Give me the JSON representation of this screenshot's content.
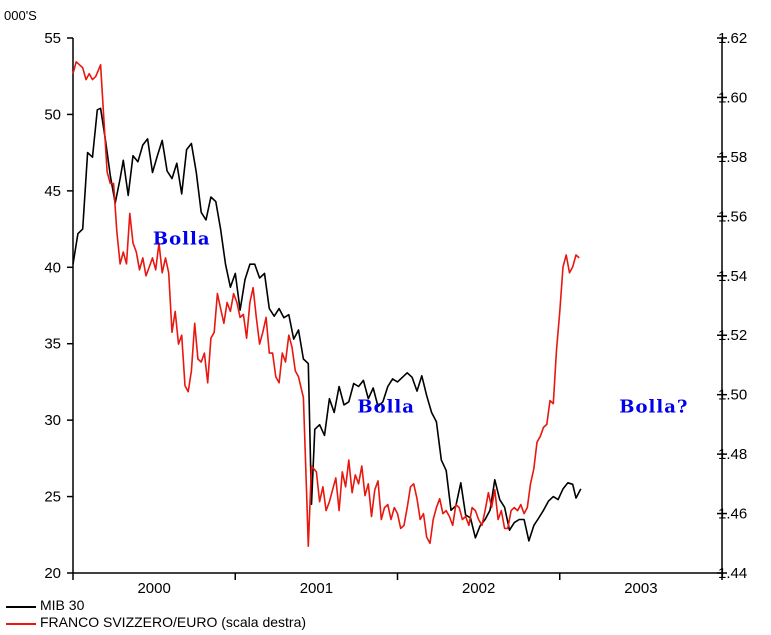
{
  "chart_data": {
    "type": "line",
    "left_unit_label": "000'S",
    "ylim_left": [
      20,
      55
    ],
    "ylim_right": [
      1.44,
      1.62
    ],
    "yticks_left": [
      "20",
      "25",
      "30",
      "35",
      "40",
      "45",
      "50",
      "55"
    ],
    "yticks_right": [
      "1.44",
      "1.46",
      "1.48",
      "1.50",
      "1.52",
      "1.54",
      "1.56",
      "1.58",
      "1.60",
      "1.62"
    ],
    "xlim": [
      2000.0,
      2004.0
    ],
    "xtick_labels": [
      {
        "label": "2000",
        "x": 2000.5
      },
      {
        "label": "2001",
        "x": 2001.5
      },
      {
        "label": "2002",
        "x": 2002.5
      },
      {
        "label": "2003",
        "x": 2003.5
      }
    ],
    "annotations": [
      {
        "text": "Bolla",
        "x": 2000.67,
        "y": 41.5
      },
      {
        "text": "Bolla",
        "x": 2001.93,
        "y": 30.5
      },
      {
        "text": "Bolla?",
        "x": 2003.58,
        "y": 30.5
      }
    ],
    "series": [
      {
        "name": "MIB 30",
        "axis": "left",
        "color": "#000000",
        "points": [
          [
            2000.0,
            40.2
          ],
          [
            2000.03,
            42.2
          ],
          [
            2000.06,
            42.5
          ],
          [
            2000.09,
            47.5
          ],
          [
            2000.12,
            47.2
          ],
          [
            2000.15,
            50.3
          ],
          [
            2000.17,
            50.4
          ],
          [
            2000.2,
            48.3
          ],
          [
            2000.23,
            46.0
          ],
          [
            2000.26,
            44.2
          ],
          [
            2000.29,
            45.8
          ],
          [
            2000.31,
            47.0
          ],
          [
            2000.34,
            44.7
          ],
          [
            2000.37,
            47.3
          ],
          [
            2000.4,
            46.9
          ],
          [
            2000.43,
            48.0
          ],
          [
            2000.46,
            48.4
          ],
          [
            2000.49,
            46.2
          ],
          [
            2000.52,
            47.3
          ],
          [
            2000.55,
            48.3
          ],
          [
            2000.58,
            46.3
          ],
          [
            2000.61,
            45.8
          ],
          [
            2000.64,
            46.8
          ],
          [
            2000.67,
            44.8
          ],
          [
            2000.7,
            47.7
          ],
          [
            2000.73,
            48.1
          ],
          [
            2000.76,
            46.2
          ],
          [
            2000.79,
            43.6
          ],
          [
            2000.82,
            43.1
          ],
          [
            2000.85,
            44.6
          ],
          [
            2000.88,
            44.3
          ],
          [
            2000.91,
            42.5
          ],
          [
            2000.94,
            40.2
          ],
          [
            2000.97,
            38.7
          ],
          [
            2001.0,
            39.6
          ],
          [
            2001.03,
            37.2
          ],
          [
            2001.06,
            39.2
          ],
          [
            2001.09,
            40.2
          ],
          [
            2001.12,
            40.2
          ],
          [
            2001.15,
            39.3
          ],
          [
            2001.18,
            39.6
          ],
          [
            2001.21,
            37.3
          ],
          [
            2001.24,
            36.8
          ],
          [
            2001.27,
            37.3
          ],
          [
            2001.3,
            36.7
          ],
          [
            2001.33,
            36.9
          ],
          [
            2001.36,
            35.3
          ],
          [
            2001.39,
            35.9
          ],
          [
            2001.42,
            34.0
          ],
          [
            2001.45,
            33.7
          ],
          [
            2001.47,
            24.5
          ],
          [
            2001.49,
            29.4
          ],
          [
            2001.52,
            29.7
          ],
          [
            2001.55,
            29.0
          ],
          [
            2001.58,
            31.4
          ],
          [
            2001.61,
            30.5
          ],
          [
            2001.64,
            32.2
          ],
          [
            2001.67,
            31.0
          ],
          [
            2001.7,
            31.2
          ],
          [
            2001.73,
            32.4
          ],
          [
            2001.76,
            32.2
          ],
          [
            2001.79,
            32.6
          ],
          [
            2001.82,
            31.4
          ],
          [
            2001.85,
            32.1
          ],
          [
            2001.88,
            30.9
          ],
          [
            2001.91,
            31.2
          ],
          [
            2001.94,
            32.2
          ],
          [
            2001.97,
            32.7
          ],
          [
            2002.0,
            32.5
          ],
          [
            2002.03,
            32.8
          ],
          [
            2002.06,
            33.1
          ],
          [
            2002.09,
            32.8
          ],
          [
            2002.12,
            31.9
          ],
          [
            2002.15,
            32.9
          ],
          [
            2002.18,
            31.6
          ],
          [
            2002.21,
            30.5
          ],
          [
            2002.24,
            29.9
          ],
          [
            2002.27,
            27.4
          ],
          [
            2002.3,
            26.7
          ],
          [
            2002.33,
            24.1
          ],
          [
            2002.36,
            24.4
          ],
          [
            2002.39,
            25.9
          ],
          [
            2002.42,
            23.8
          ],
          [
            2002.45,
            23.6
          ],
          [
            2002.48,
            22.3
          ],
          [
            2002.51,
            23.1
          ],
          [
            2002.54,
            23.5
          ],
          [
            2002.57,
            24.1
          ],
          [
            2002.6,
            26.1
          ],
          [
            2002.63,
            24.8
          ],
          [
            2002.66,
            24.3
          ],
          [
            2002.69,
            22.8
          ],
          [
            2002.72,
            23.3
          ],
          [
            2002.75,
            23.5
          ],
          [
            2002.78,
            23.5
          ],
          [
            2002.81,
            22.1
          ],
          [
            2002.84,
            23.1
          ],
          [
            2002.87,
            23.6
          ],
          [
            2002.9,
            24.1
          ],
          [
            2002.93,
            24.7
          ],
          [
            2002.96,
            25.0
          ],
          [
            2002.99,
            24.8
          ],
          [
            2003.02,
            25.5
          ],
          [
            2003.05,
            25.9
          ],
          [
            2003.08,
            25.8
          ],
          [
            2003.1,
            24.9
          ],
          [
            2003.13,
            25.5
          ]
        ]
      },
      {
        "name": "FRANCO SVIZZERO/EURO (scala destra)",
        "axis": "right",
        "color": "#e8170f",
        "points": [
          [
            2000.0,
            1.608
          ],
          [
            2000.02,
            1.612
          ],
          [
            2000.04,
            1.611
          ],
          [
            2000.06,
            1.61
          ],
          [
            2000.08,
            1.606
          ],
          [
            2000.1,
            1.608
          ],
          [
            2000.12,
            1.606
          ],
          [
            2000.14,
            1.607
          ],
          [
            2000.17,
            1.611
          ],
          [
            2000.19,
            1.593
          ],
          [
            2000.21,
            1.575
          ],
          [
            2000.23,
            1.571
          ],
          [
            2000.25,
            1.571
          ],
          [
            2000.27,
            1.555
          ],
          [
            2000.29,
            1.544
          ],
          [
            2000.31,
            1.548
          ],
          [
            2000.33,
            1.544
          ],
          [
            2000.35,
            1.561
          ],
          [
            2000.37,
            1.551
          ],
          [
            2000.39,
            1.548
          ],
          [
            2000.41,
            1.542
          ],
          [
            2000.43,
            1.546
          ],
          [
            2000.45,
            1.54
          ],
          [
            2000.47,
            1.543
          ],
          [
            2000.49,
            1.546
          ],
          [
            2000.51,
            1.542
          ],
          [
            2000.53,
            1.551
          ],
          [
            2000.55,
            1.541
          ],
          [
            2000.57,
            1.546
          ],
          [
            2000.59,
            1.541
          ],
          [
            2000.61,
            1.521
          ],
          [
            2000.63,
            1.528
          ],
          [
            2000.65,
            1.517
          ],
          [
            2000.67,
            1.52
          ],
          [
            2000.69,
            1.503
          ],
          [
            2000.71,
            1.501
          ],
          [
            2000.73,
            1.508
          ],
          [
            2000.75,
            1.524
          ],
          [
            2000.77,
            1.512
          ],
          [
            2000.79,
            1.511
          ],
          [
            2000.81,
            1.514
          ],
          [
            2000.83,
            1.504
          ],
          [
            2000.85,
            1.519
          ],
          [
            2000.87,
            1.521
          ],
          [
            2000.89,
            1.534
          ],
          [
            2000.91,
            1.529
          ],
          [
            2000.93,
            1.524
          ],
          [
            2000.95,
            1.531
          ],
          [
            2000.97,
            1.528
          ],
          [
            2000.99,
            1.534
          ],
          [
            2001.01,
            1.531
          ],
          [
            2001.03,
            1.526
          ],
          [
            2001.05,
            1.527
          ],
          [
            2001.07,
            1.519
          ],
          [
            2001.09,
            1.531
          ],
          [
            2001.11,
            1.536
          ],
          [
            2001.13,
            1.526
          ],
          [
            2001.15,
            1.517
          ],
          [
            2001.17,
            1.521
          ],
          [
            2001.19,
            1.526
          ],
          [
            2001.21,
            1.514
          ],
          [
            2001.23,
            1.514
          ],
          [
            2001.25,
            1.506
          ],
          [
            2001.27,
            1.504
          ],
          [
            2001.29,
            1.514
          ],
          [
            2001.31,
            1.511
          ],
          [
            2001.33,
            1.52
          ],
          [
            2001.35,
            1.516
          ],
          [
            2001.37,
            1.508
          ],
          [
            2001.39,
            1.506
          ],
          [
            2001.42,
            1.499
          ],
          [
            2001.44,
            1.467
          ],
          [
            2001.45,
            1.449
          ],
          [
            2001.47,
            1.476
          ],
          [
            2001.5,
            1.474
          ],
          [
            2001.52,
            1.464
          ],
          [
            2001.54,
            1.469
          ],
          [
            2001.56,
            1.461
          ],
          [
            2001.58,
            1.464
          ],
          [
            2001.6,
            1.468
          ],
          [
            2001.62,
            1.472
          ],
          [
            2001.64,
            1.461
          ],
          [
            2001.66,
            1.474
          ],
          [
            2001.68,
            1.469
          ],
          [
            2001.7,
            1.478
          ],
          [
            2001.72,
            1.467
          ],
          [
            2001.74,
            1.473
          ],
          [
            2001.76,
            1.47
          ],
          [
            2001.78,
            1.476
          ],
          [
            2001.8,
            1.466
          ],
          [
            2001.82,
            1.47
          ],
          [
            2001.84,
            1.459
          ],
          [
            2001.86,
            1.468
          ],
          [
            2001.88,
            1.471
          ],
          [
            2001.9,
            1.458
          ],
          [
            2001.92,
            1.462
          ],
          [
            2001.94,
            1.463
          ],
          [
            2001.96,
            1.458
          ],
          [
            2001.98,
            1.462
          ],
          [
            2002.0,
            1.46
          ],
          [
            2002.02,
            1.455
          ],
          [
            2002.04,
            1.456
          ],
          [
            2002.06,
            1.462
          ],
          [
            2002.08,
            1.469
          ],
          [
            2002.1,
            1.47
          ],
          [
            2002.12,
            1.465
          ],
          [
            2002.14,
            1.458
          ],
          [
            2002.16,
            1.46
          ],
          [
            2002.18,
            1.452
          ],
          [
            2002.2,
            1.45
          ],
          [
            2002.22,
            1.458
          ],
          [
            2002.24,
            1.462
          ],
          [
            2002.26,
            1.465
          ],
          [
            2002.28,
            1.46
          ],
          [
            2002.3,
            1.461
          ],
          [
            2002.32,
            1.459
          ],
          [
            2002.34,
            1.456
          ],
          [
            2002.36,
            1.463
          ],
          [
            2002.38,
            1.462
          ],
          [
            2002.4,
            1.458
          ],
          [
            2002.42,
            1.459
          ],
          [
            2002.44,
            1.456
          ],
          [
            2002.46,
            1.462
          ],
          [
            2002.48,
            1.461
          ],
          [
            2002.5,
            1.458
          ],
          [
            2002.52,
            1.456
          ],
          [
            2002.54,
            1.461
          ],
          [
            2002.56,
            1.467
          ],
          [
            2002.58,
            1.462
          ],
          [
            2002.6,
            1.468
          ],
          [
            2002.62,
            1.458
          ],
          [
            2002.64,
            1.461
          ],
          [
            2002.66,
            1.455
          ],
          [
            2002.68,
            1.455
          ],
          [
            2002.7,
            1.461
          ],
          [
            2002.72,
            1.462
          ],
          [
            2002.74,
            1.461
          ],
          [
            2002.76,
            1.463
          ],
          [
            2002.78,
            1.46
          ],
          [
            2002.8,
            1.462
          ],
          [
            2002.82,
            1.47
          ],
          [
            2002.84,
            1.475
          ],
          [
            2002.86,
            1.484
          ],
          [
            2002.88,
            1.486
          ],
          [
            2002.9,
            1.489
          ],
          [
            2002.92,
            1.49
          ],
          [
            2002.94,
            1.498
          ],
          [
            2002.96,
            1.497
          ],
          [
            2002.98,
            1.515
          ],
          [
            2003.0,
            1.528
          ],
          [
            2003.02,
            1.543
          ],
          [
            2003.04,
            1.547
          ],
          [
            2003.06,
            1.541
          ],
          [
            2003.08,
            1.543
          ],
          [
            2003.1,
            1.547
          ],
          [
            2003.12,
            1.546
          ]
        ]
      }
    ]
  }
}
